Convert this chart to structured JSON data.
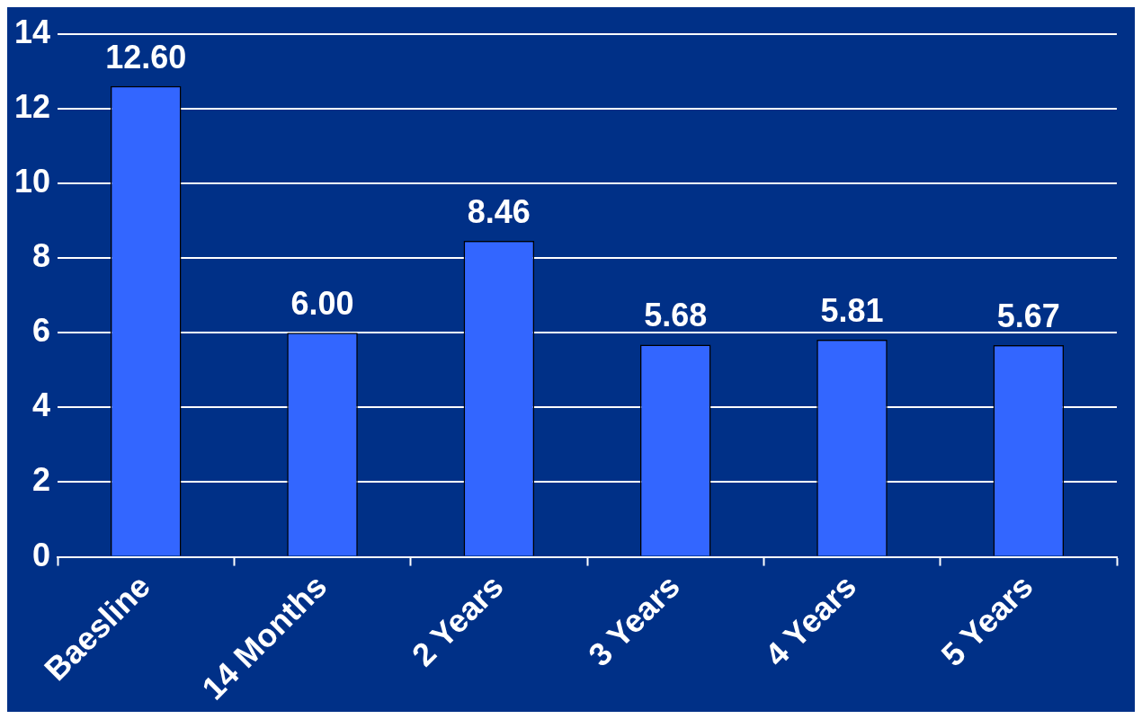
{
  "chart_data": {
    "type": "bar",
    "categories": [
      "Baesline",
      "14 Months",
      "2 Years",
      "3 Years",
      "4 Years",
      "5 Years"
    ],
    "values": [
      12.6,
      6.0,
      8.46,
      5.68,
      5.81,
      5.67
    ],
    "color": "#3366ff",
    "value_labels": [
      "12.60",
      "6.00",
      "8.46",
      "5.68",
      "5.81",
      "5.67"
    ],
    "ylim": [
      0,
      14
    ],
    "yticks": [
      0,
      2,
      4,
      6,
      8,
      10,
      12,
      14
    ],
    "grid": "y",
    "legend": false
  }
}
